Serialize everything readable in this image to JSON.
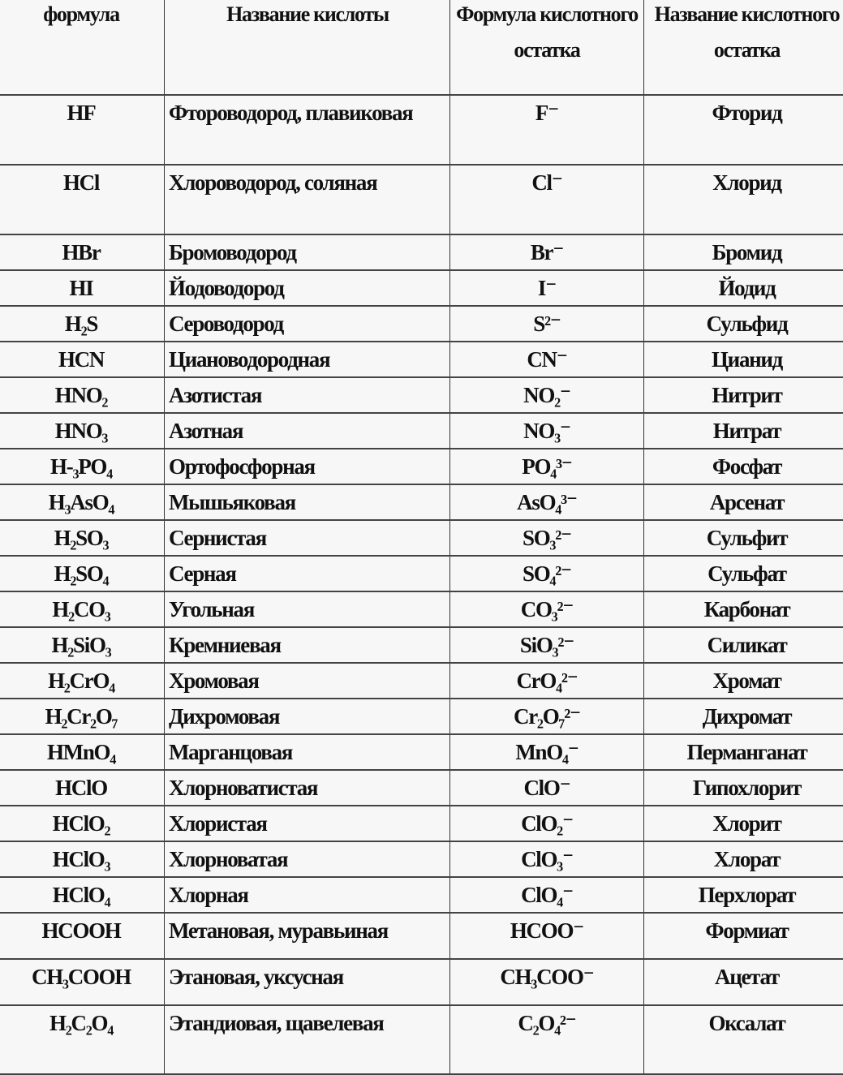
{
  "headers": [
    "формула",
    "Название кислоты",
    "Формула кислотного остатка",
    "Название кислотного остатка"
  ],
  "rows": [
    {
      "formula": "HF",
      "acid": "Фтороводород, плавиковая",
      "residue": "F⁻",
      "residue_name": "Фторид"
    },
    {
      "formula": "HCl",
      "acid": "Хлороводород, соляная",
      "residue": "Cl⁻",
      "residue_name": "Хлорид"
    },
    {
      "formula": "HBr",
      "acid": "Бромоводород",
      "residue": "Br⁻",
      "residue_name": "Бромид"
    },
    {
      "formula": "HI",
      "acid": "Йодоводород",
      "residue": "I⁻",
      "residue_name": "Йодид"
    },
    {
      "formula": "H₂S",
      "acid": "Сероводород",
      "residue": "S²⁻",
      "residue_name": "Сульфид"
    },
    {
      "formula": "HCN",
      "acid": "Циановодородная",
      "residue": "CN⁻",
      "residue_name": "Цианид"
    },
    {
      "formula": "HNO₂",
      "acid": "Азотистая",
      "residue": "NO₂⁻",
      "residue_name": "Нитрит"
    },
    {
      "formula": "HNO₃",
      "acid": "Азотная",
      "residue": "NO₃⁻",
      "residue_name": "Нитрат"
    },
    {
      "formula": "H-₃PO₄",
      "acid": "Ортофосфорная",
      "residue": "PO₄³⁻",
      "residue_name": "Фосфат"
    },
    {
      "formula": "H₃AsO₄",
      "acid": "Мышьяковая",
      "residue": "AsO₄³⁻",
      "residue_name": "Арсенат"
    },
    {
      "formula": "H₂SO₃",
      "acid": "Сернистая",
      "residue": "SO₃²⁻",
      "residue_name": "Сульфит"
    },
    {
      "formula": "H₂SO₄",
      "acid": "Серная",
      "residue": "SO₄²⁻",
      "residue_name": "Сульфат"
    },
    {
      "formula": "H₂CO₃",
      "acid": "Угольная",
      "residue": "CO₃²⁻",
      "residue_name": "Карбонат"
    },
    {
      "formula": "H₂SiO₃",
      "acid": "Кремниевая",
      "residue": "SiO₃²⁻",
      "residue_name": "Силикат"
    },
    {
      "formula": "H₂CrO₄",
      "acid": "Хромовая",
      "residue": "CrO₄²⁻",
      "residue_name": "Хромат"
    },
    {
      "formula": "H₂Cr₂O₇",
      "acid": "Дихромовая",
      "residue": "Cr₂O₇²⁻",
      "residue_name": "Дихромат"
    },
    {
      "formula": "HMnO₄",
      "acid": "Марганцовая",
      "residue": "MnO₄⁻",
      "residue_name": "Перманганат"
    },
    {
      "formula": "HClO",
      "acid": "Хлорноватистая",
      "residue": "ClO⁻",
      "residue_name": "Гипохлорит"
    },
    {
      "formula": "HClO₂",
      "acid": "Хлористая",
      "residue": "ClO₂⁻",
      "residue_name": "Хлорит"
    },
    {
      "formula": "HClO₃",
      "acid": "Хлорноватая",
      "residue": "ClO₃⁻",
      "residue_name": "Хлорат"
    },
    {
      "formula": "HClO₄",
      "acid": "Хлорная",
      "residue": "ClO₄⁻",
      "residue_name": "Перхлорат"
    },
    {
      "formula": "HCOOH",
      "acid": "Метановая, муравьиная",
      "residue": "HCOO⁻",
      "residue_name": "Формиат"
    },
    {
      "formula": "CH₃COOH",
      "acid": "Этановая, уксусная",
      "residue": "CH₃COO⁻",
      "residue_name": "Ацетат"
    },
    {
      "formula": "H₂C₂O₄",
      "acid": "Этандиовая, щавелевая",
      "residue": "C₂O₄²⁻",
      "residue_name": "Оксалат"
    }
  ]
}
